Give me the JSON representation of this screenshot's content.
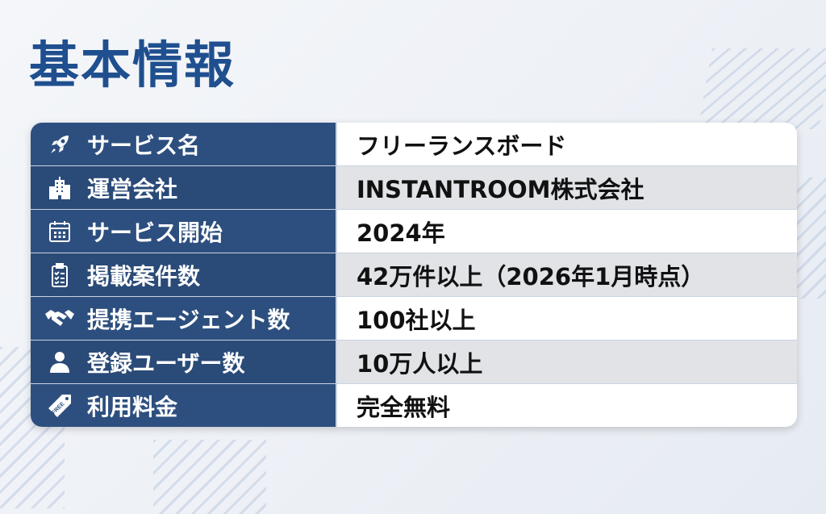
{
  "title": "基本情報",
  "rows": [
    {
      "icon": "rocket-icon",
      "label": "サービス名",
      "value": "フリーランスボード"
    },
    {
      "icon": "building-icon",
      "label": "運営会社",
      "value": "INSTANTROOM株式会社"
    },
    {
      "icon": "calendar-icon",
      "label": "サービス開始",
      "value": "2024年"
    },
    {
      "icon": "clipboard-icon",
      "label": "掲載案件数",
      "value": "42万件以上（2026年1月時点）"
    },
    {
      "icon": "handshake-icon",
      "label": "提携エージェント数",
      "value": "100社以上"
    },
    {
      "icon": "user-icon",
      "label": "登録ユーザー数",
      "value": "10万人以上"
    },
    {
      "icon": "free-tag-icon",
      "label": "利用料金",
      "value": "完全無料"
    }
  ],
  "free_tag_text": "FREE",
  "colors": {
    "title": "#1f4f8f",
    "label_bg": "#2d4f7f",
    "value_alt_bg": "#e1e3e7"
  }
}
